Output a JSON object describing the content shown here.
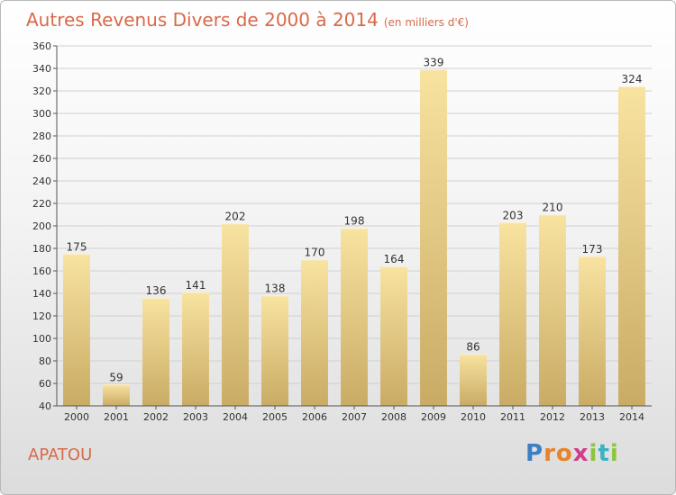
{
  "title": "Autres Revenus Divers de 2000 à 2014",
  "subtitle": "(en milliers d'€)",
  "town": "APATOU",
  "logo": {
    "letters": [
      "P",
      "r",
      "o",
      "x",
      "i",
      "t",
      "i"
    ],
    "colors": [
      "#3b7fc4",
      "#e8832a",
      "#e8832a",
      "#d23c8c",
      "#8cc63f",
      "#3bb3c4",
      "#8cc63f"
    ]
  },
  "colors": {
    "title": "#d9694a",
    "bar_top": "#f8e3a0",
    "bar_bottom": "#c9ab64",
    "grid": "#d0d0d0"
  },
  "chart_data": {
    "type": "bar",
    "categories": [
      "2000",
      "2001",
      "2002",
      "2003",
      "2004",
      "2005",
      "2006",
      "2007",
      "2008",
      "2009",
      "2010",
      "2011",
      "2012",
      "2013",
      "2014"
    ],
    "values": [
      175,
      59,
      136,
      141,
      202,
      138,
      170,
      198,
      164,
      339,
      86,
      203,
      210,
      173,
      324
    ],
    "ylim": [
      40,
      360
    ],
    "yticks": [
      40,
      60,
      80,
      100,
      120,
      140,
      160,
      180,
      200,
      220,
      240,
      260,
      280,
      300,
      320,
      340,
      360
    ],
    "grid": true,
    "data_labels": true
  }
}
